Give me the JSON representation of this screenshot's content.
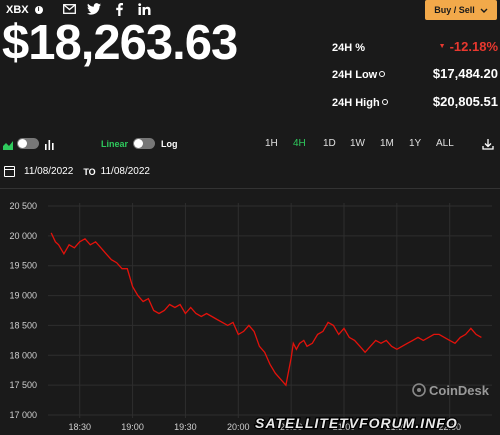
{
  "header": {
    "ticker": "XBX",
    "info_glyph": "i",
    "social_icons": [
      "mail-icon",
      "twitter-icon",
      "facebook-icon",
      "linkedin-icon"
    ],
    "price": "$18,263.63",
    "buy_sell_label": "Buy / Sell",
    "buy_sell_color": "#f2a94a"
  },
  "stats": {
    "change_label": "24H %",
    "change_value": "-12.18%",
    "low_label": "24H Low",
    "low_value": "$17,484.20",
    "high_label": "24H High",
    "high_value": "$20,805.51",
    "negative_color": "#e8382f"
  },
  "controls": {
    "linear_label": "Linear",
    "log_label": "Log",
    "ranges": [
      "1H",
      "4H",
      "1D",
      "1W",
      "1M",
      "1Y",
      "ALL"
    ],
    "active_range": "4H",
    "accent_color": "#2ec95c"
  },
  "dates": {
    "from": "11/08/2022",
    "to_label": "TO",
    "to": "11/08/2022"
  },
  "watermark": {
    "brand": "CoinDesk",
    "site": "SATELLITETVFORUM.INFO"
  },
  "chart_data": {
    "type": "line",
    "line_color": "#e3120b",
    "grid": true,
    "ylim": [
      16950,
      20550
    ],
    "y_ticks": [
      17000,
      17500,
      18000,
      18500,
      19000,
      19500,
      20000,
      20500
    ],
    "y_tick_labels": [
      "17 000",
      "17 500",
      "18 000",
      "18 500",
      "19 000",
      "19 500",
      "20 000",
      "20 500"
    ],
    "xlim": [
      18.2,
      22.4
    ],
    "x_ticks": [
      18.5,
      19.0,
      19.5,
      20.0,
      20.5,
      21.0,
      21.5,
      22.0
    ],
    "x_tick_labels": [
      "18:30",
      "19:00",
      "19:30",
      "20:00",
      "20:30",
      "21:00",
      "21:30",
      "22:00"
    ],
    "series": [
      {
        "x": [
          18.23,
          18.27,
          18.3,
          18.35,
          18.4,
          18.45,
          18.5,
          18.55,
          18.6,
          18.65,
          18.7,
          18.75,
          18.8,
          18.85,
          18.9,
          18.95,
          19.0,
          19.05,
          19.1,
          19.15,
          19.2,
          19.25,
          19.3,
          19.35,
          19.4,
          19.45,
          19.5,
          19.55,
          19.6,
          19.65,
          19.7,
          19.75,
          19.8,
          19.85,
          19.9,
          19.95,
          20.0,
          20.05,
          20.1,
          20.15,
          20.2,
          20.25,
          20.3,
          20.35,
          20.4,
          20.45,
          20.5,
          20.52,
          20.55,
          20.58,
          20.62,
          20.65,
          20.7,
          20.75,
          20.8,
          20.85,
          20.9,
          20.95,
          21.0,
          21.05,
          21.1,
          21.15,
          21.2,
          21.25,
          21.3,
          21.35,
          21.4,
          21.45,
          21.5,
          21.55,
          21.6,
          21.65,
          21.7,
          21.75,
          21.8,
          21.85,
          21.9,
          21.95,
          22.0,
          22.05,
          22.1,
          22.15,
          22.2,
          22.25,
          22.3
        ],
        "y": [
          20050,
          19900,
          19850,
          19700,
          19850,
          19800,
          19900,
          19950,
          19850,
          19900,
          19800,
          19700,
          19600,
          19550,
          19450,
          19450,
          19150,
          19000,
          18900,
          18950,
          18750,
          18700,
          18750,
          18850,
          18800,
          18850,
          18700,
          18800,
          18700,
          18650,
          18700,
          18650,
          18600,
          18550,
          18500,
          18550,
          18350,
          18400,
          18500,
          18400,
          18150,
          18050,
          17850,
          17700,
          17600,
          17500,
          17950,
          18200,
          18100,
          18200,
          18250,
          18150,
          18200,
          18350,
          18400,
          18550,
          18500,
          18350,
          18450,
          18300,
          18250,
          18150,
          18050,
          18150,
          18250,
          18200,
          18250,
          18150,
          18100,
          18150,
          18200,
          18250,
          18300,
          18250,
          18300,
          18350,
          18350,
          18300,
          18250,
          18200,
          18300,
          18350,
          18450,
          18350,
          18300
        ]
      }
    ]
  }
}
